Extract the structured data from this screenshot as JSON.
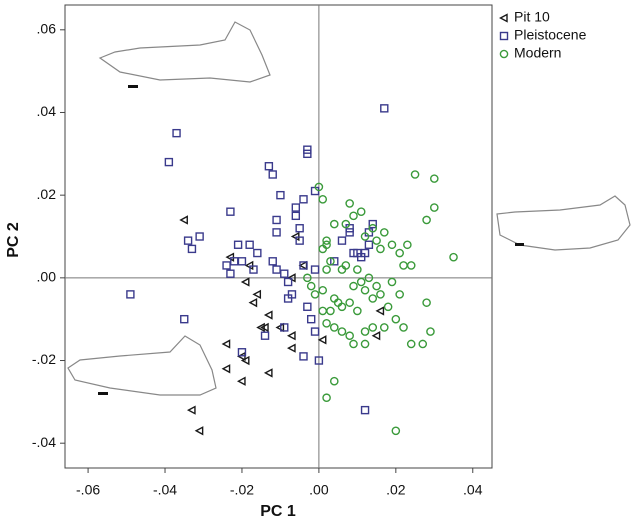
{
  "chart_data": {
    "type": "scatter",
    "x_label": "PC 1",
    "y_label": "PC 2",
    "xlim": [
      -0.066,
      0.045
    ],
    "ylim": [
      -0.046,
      0.066
    ],
    "xticks": [
      {
        "value": -0.06,
        "label": "-.06"
      },
      {
        "value": -0.04,
        "label": "-.04"
      },
      {
        "value": -0.02,
        "label": "-.02"
      },
      {
        "value": 0,
        "label": ".00"
      },
      {
        "value": 0.02,
        "label": ".02"
      },
      {
        "value": 0.04,
        "label": ".04"
      }
    ],
    "yticks": [
      {
        "value": -0.04,
        "label": "-.04"
      },
      {
        "value": -0.02,
        "label": "-.02"
      },
      {
        "value": 0,
        "label": ".00"
      },
      {
        "value": 0.02,
        "label": ".02"
      },
      {
        "value": 0.04,
        "label": ".04"
      },
      {
        "value": 0.06,
        "label": ".06"
      }
    ],
    "reference_lines": {
      "x": 0,
      "y": 0
    },
    "legend": "top-right",
    "series": [
      {
        "name": "Pit 10",
        "color": "#1a1a1a",
        "marker": "triangle-left",
        "x": [
          -0.035,
          -0.023,
          -0.018,
          -0.019,
          -0.016,
          -0.017,
          -0.013,
          -0.015,
          -0.014,
          -0.01,
          -0.007,
          -0.024,
          -0.007,
          -0.02,
          -0.019,
          -0.013,
          -0.02,
          -0.024,
          -0.033,
          -0.031,
          -0.006,
          -0.007,
          0.001,
          0.016,
          0.015,
          -0.004
        ],
        "y": [
          0.014,
          0.005,
          0.003,
          -0.001,
          -0.004,
          -0.006,
          -0.009,
          -0.012,
          -0.012,
          -0.012,
          -0.014,
          -0.016,
          -0.017,
          -0.019,
          -0.02,
          -0.023,
          -0.025,
          -0.022,
          -0.032,
          -0.037,
          0.01,
          0.0,
          -0.015,
          -0.008,
          -0.014,
          0.003
        ]
      },
      {
        "name": "Pleistocene",
        "color": "#3a3a8c",
        "marker": "square",
        "x": [
          -0.049,
          -0.037,
          -0.039,
          -0.035,
          -0.033,
          -0.034,
          -0.031,
          -0.024,
          -0.023,
          -0.022,
          -0.021,
          -0.02,
          -0.018,
          -0.017,
          -0.016,
          -0.013,
          -0.012,
          -0.01,
          -0.011,
          -0.011,
          -0.012,
          -0.011,
          -0.009,
          -0.008,
          -0.008,
          -0.007,
          -0.006,
          -0.006,
          -0.005,
          -0.005,
          -0.004,
          -0.003,
          -0.003,
          -0.004,
          -0.003,
          -0.002,
          -0.004,
          -0.001,
          0.0,
          -0.02,
          -0.014,
          -0.009,
          -0.001,
          0.004,
          0.006,
          0.008,
          0.008,
          0.009,
          0.01,
          0.011,
          0.013,
          0.013,
          0.014,
          0.012,
          0.017,
          0.012,
          -0.023,
          -0.001
        ],
        "y": [
          -0.004,
          0.035,
          0.028,
          -0.01,
          0.007,
          0.009,
          0.01,
          0.003,
          0.001,
          0.004,
          0.008,
          0.004,
          0.008,
          0.002,
          0.006,
          0.027,
          0.025,
          0.02,
          0.014,
          0.011,
          0.004,
          0.002,
          0.001,
          -0.001,
          -0.005,
          -0.004,
          0.017,
          0.015,
          0.012,
          0.009,
          0.019,
          0.031,
          0.03,
          0.003,
          -0.007,
          -0.01,
          -0.019,
          -0.013,
          -0.02,
          -0.018,
          -0.014,
          -0.012,
          0.002,
          0.004,
          0.009,
          0.012,
          0.011,
          0.006,
          0.006,
          0.005,
          0.008,
          0.011,
          0.013,
          0.006,
          0.041,
          -0.032,
          0.016,
          0.021
        ]
      },
      {
        "name": "Modern",
        "color": "#3a9a3a",
        "marker": "circle",
        "x": [
          0.0,
          0.001,
          0.002,
          0.001,
          0.002,
          0.004,
          0.007,
          0.008,
          0.009,
          0.011,
          0.012,
          0.014,
          0.015,
          0.016,
          0.017,
          0.019,
          0.021,
          0.023,
          0.022,
          0.024,
          0.025,
          0.028,
          0.03,
          0.03,
          0.035,
          0.028,
          0.029,
          0.027,
          0.022,
          0.02,
          0.018,
          0.016,
          0.015,
          0.014,
          0.012,
          0.013,
          0.011,
          0.01,
          0.009,
          0.008,
          0.006,
          0.005,
          0.004,
          0.003,
          0.002,
          0.004,
          0.006,
          0.008,
          0.009,
          0.012,
          0.014,
          0.017,
          0.019,
          0.021,
          0.024,
          0.001,
          0.002,
          0.006,
          -0.001,
          -0.002,
          -0.003,
          0.001,
          0.002,
          0.004,
          0.02,
          0.007,
          0.01,
          0.012,
          0.003
        ],
        "y": [
          0.022,
          0.019,
          0.009,
          0.007,
          0.008,
          0.013,
          0.013,
          0.018,
          0.015,
          0.016,
          0.01,
          0.012,
          0.009,
          0.007,
          0.011,
          0.008,
          0.006,
          0.008,
          0.003,
          0.003,
          0.025,
          0.014,
          0.024,
          0.017,
          0.005,
          -0.006,
          -0.013,
          -0.016,
          -0.012,
          -0.01,
          -0.007,
          -0.004,
          -0.002,
          -0.005,
          -0.003,
          0.0,
          -0.001,
          0.002,
          -0.002,
          -0.006,
          -0.007,
          -0.006,
          -0.005,
          -0.008,
          -0.011,
          -0.012,
          -0.013,
          -0.014,
          -0.016,
          -0.016,
          -0.012,
          -0.012,
          -0.001,
          -0.004,
          -0.016,
          -0.003,
          0.002,
          0.002,
          -0.004,
          -0.002,
          0.0,
          -0.008,
          -0.029,
          -0.025,
          -0.037,
          0.003,
          -0.008,
          -0.013,
          0.004
        ]
      }
    ]
  }
}
